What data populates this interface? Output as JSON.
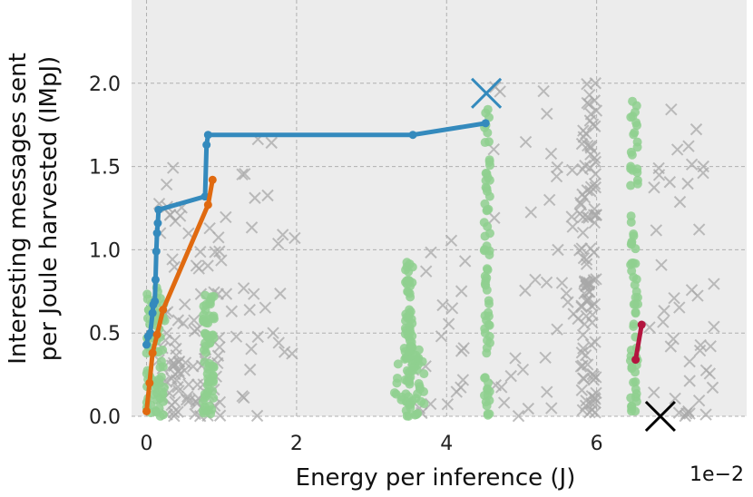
{
  "chart_data": {
    "type": "scatter",
    "xlabel": "Energy per inference (J)",
    "x_offset_label": "1e−2",
    "ylabel_line1": "Interesting messages sent",
    "ylabel_line2": "per Joule harvested (IMpJ)",
    "xlim": [
      -0.2,
      8.0
    ],
    "ylim": [
      0.0,
      2.5
    ],
    "xticks": [
      0,
      2,
      4,
      6
    ],
    "xtick_labels": [
      "0",
      "2",
      "4",
      "6"
    ],
    "yticks": [
      0.0,
      0.5,
      1.0,
      1.5,
      2.0
    ],
    "ytick_labels": [
      "0.0",
      "0.5",
      "1.0",
      "1.5",
      "2.0"
    ],
    "grid": true,
    "colors": {
      "background": "#ececec",
      "grid": "#b0b0b0",
      "blue": "#348abd",
      "orange": "#e06a10",
      "crimson": "#b3153f",
      "green_scatter": "#8fd08f",
      "gray_scatter": "#a8a8a8"
    },
    "series": [
      {
        "color": "#348abd",
        "style": "line-marker",
        "points": [
          [
            0.0,
            0.43
          ],
          [
            0.02,
            0.48
          ],
          [
            0.05,
            0.5
          ],
          [
            0.08,
            0.62
          ],
          [
            0.09,
            0.67
          ],
          [
            0.11,
            0.69
          ],
          [
            0.12,
            0.82
          ],
          [
            0.13,
            0.99
          ],
          [
            0.14,
            1.1
          ],
          [
            0.15,
            1.16
          ],
          [
            0.16,
            1.24
          ],
          [
            0.78,
            1.32
          ],
          [
            0.8,
            1.63
          ],
          [
            0.82,
            1.69
          ],
          [
            3.55,
            1.69
          ],
          [
            4.52,
            1.76
          ]
        ]
      },
      {
        "color": "#e06a10",
        "style": "line-marker",
        "points": [
          [
            0.0,
            0.03
          ],
          [
            0.04,
            0.2
          ],
          [
            0.08,
            0.38
          ],
          [
            0.14,
            0.49
          ],
          [
            0.22,
            0.64
          ],
          [
            0.82,
            1.27
          ],
          [
            0.88,
            1.42
          ]
        ]
      },
      {
        "color": "#b3153f",
        "style": "line-marker",
        "points": [
          [
            6.52,
            0.34
          ],
          [
            6.6,
            0.55
          ]
        ]
      },
      {
        "color": "#348abd",
        "style": "large-x",
        "points": [
          [
            4.53,
            1.94
          ]
        ]
      },
      {
        "color": "#000000",
        "style": "large-x",
        "points": [
          [
            6.85,
            0.0
          ]
        ]
      }
    ]
  }
}
